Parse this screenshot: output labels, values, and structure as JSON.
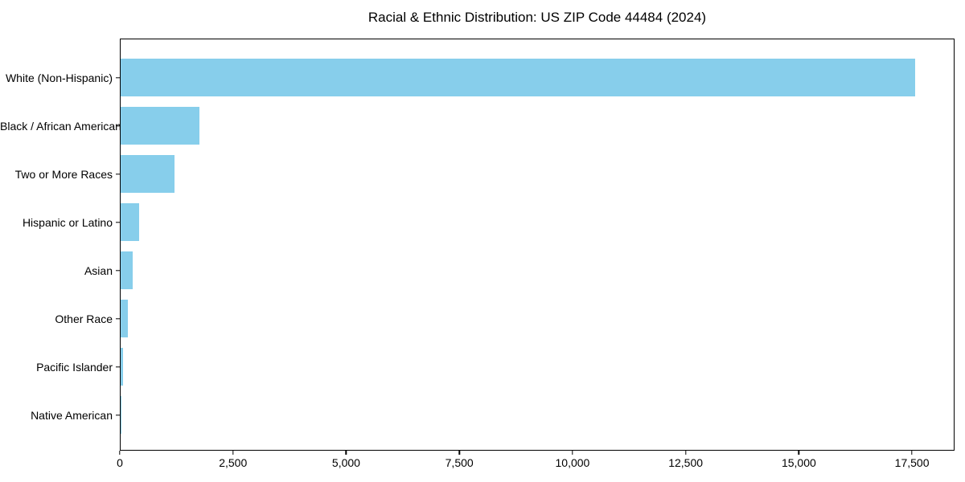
{
  "chart_data": {
    "type": "bar",
    "orientation": "horizontal",
    "title": "Racial & Ethnic Distribution: US ZIP Code 44484 (2024)",
    "categories": [
      "White (Non-Hispanic)",
      "Black / African American",
      "Two or More Races",
      "Hispanic or Latino",
      "Asian",
      "Other Race",
      "Pacific Islander",
      "Native American"
    ],
    "values": [
      17560,
      1740,
      1190,
      410,
      265,
      155,
      50,
      15
    ],
    "xlabel": "",
    "ylabel": "",
    "xlim": [
      0,
      18440
    ],
    "x_ticks": [
      0,
      2500,
      5000,
      7500,
      10000,
      12500,
      15000,
      17500
    ],
    "x_tick_labels": [
      "0",
      "2,500",
      "5,000",
      "7,500",
      "10,000",
      "12,500",
      "15,000",
      "17,500"
    ],
    "bar_color": "#87CEEB",
    "axis_color": "#000000",
    "text_color": "#000000",
    "background_color": "#ffffff",
    "grid": false,
    "legend": null
  }
}
